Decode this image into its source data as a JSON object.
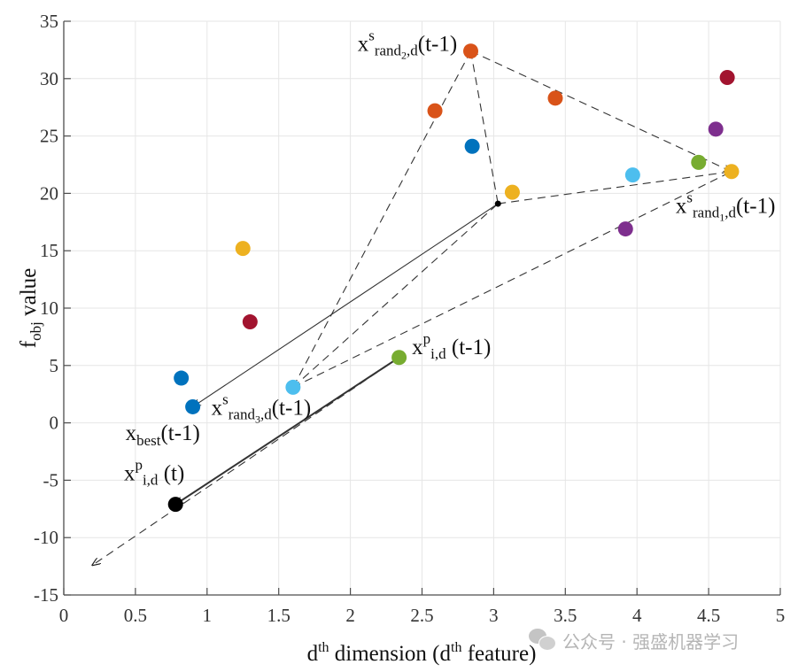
{
  "chart_data": {
    "type": "scatter",
    "title": "",
    "xlabel": {
      "base": "d",
      "sup": "th",
      "mid": " dimension (d",
      "sup2": "th",
      "tail": " feature)"
    },
    "ylabel": {
      "base": "f",
      "sub": "obj",
      "tail": " value"
    },
    "xlim": [
      0,
      5
    ],
    "ylim": [
      -15,
      35
    ],
    "xticks": [
      0,
      0.5,
      1,
      1.5,
      2,
      2.5,
      3,
      3.5,
      4,
      4.5,
      5
    ],
    "xtick_labels": [
      "0",
      "0.5",
      "1",
      "1.5",
      "2",
      "2.5",
      "3",
      "3.5",
      "4",
      "4.5",
      "5"
    ],
    "yticks": [
      -15,
      -10,
      -5,
      0,
      5,
      10,
      15,
      20,
      25,
      30,
      35
    ],
    "ytick_labels": [
      "-15",
      "-10",
      "-5",
      "0",
      "5",
      "10",
      "15",
      "20",
      "25",
      "30",
      "35"
    ],
    "grid": true,
    "colors": {
      "orange": "#d95319",
      "blue": "#0072bd",
      "yellow": "#edb120",
      "light_blue": "#4dbeee",
      "green": "#77ac30",
      "purple": "#7e2f8e",
      "crimson": "#a2142f",
      "black": "#000000",
      "grid": "#e6e6e6",
      "axis": "#4d4d4d",
      "line": "#333333"
    },
    "points": [
      {
        "x": 2.84,
        "y": 32.4,
        "color": "orange",
        "role": "x_rand2"
      },
      {
        "x": 2.59,
        "y": 27.2,
        "color": "orange"
      },
      {
        "x": 3.43,
        "y": 28.3,
        "color": "orange"
      },
      {
        "x": 2.85,
        "y": 24.1,
        "color": "blue"
      },
      {
        "x": 3.13,
        "y": 20.1,
        "color": "yellow"
      },
      {
        "x": 3.97,
        "y": 21.6,
        "color": "light_blue"
      },
      {
        "x": 4.43,
        "y": 22.7,
        "color": "green"
      },
      {
        "x": 4.66,
        "y": 21.9,
        "color": "yellow",
        "role": "x_rand1"
      },
      {
        "x": 4.63,
        "y": 30.1,
        "color": "crimson"
      },
      {
        "x": 4.55,
        "y": 25.6,
        "color": "purple"
      },
      {
        "x": 3.92,
        "y": 16.9,
        "color": "purple"
      },
      {
        "x": 1.25,
        "y": 15.2,
        "color": "yellow"
      },
      {
        "x": 1.3,
        "y": 8.8,
        "color": "crimson"
      },
      {
        "x": 0.82,
        "y": 3.9,
        "color": "blue"
      },
      {
        "x": 0.9,
        "y": 1.4,
        "color": "blue",
        "role": "x_best"
      },
      {
        "x": 1.6,
        "y": 3.1,
        "color": "light_blue",
        "role": "x_rand3"
      },
      {
        "x": 2.34,
        "y": 5.7,
        "color": "green",
        "role": "x_p_prev"
      },
      {
        "x": 0.78,
        "y": -7.1,
        "color": "black",
        "role": "x_p_new"
      }
    ],
    "center_point": {
      "x": 3.03,
      "y": 19.1
    },
    "segments": [
      {
        "from": [
          2.84,
          32.4
        ],
        "to": [
          4.66,
          21.9
        ],
        "style": "dashed",
        "arrow": true
      },
      {
        "from": [
          2.84,
          32.4
        ],
        "to": [
          1.6,
          3.1
        ],
        "style": "dashed"
      },
      {
        "from": [
          2.84,
          32.4
        ],
        "to": [
          3.03,
          19.1
        ],
        "style": "dashed"
      },
      {
        "from": [
          3.03,
          19.1
        ],
        "to": [
          4.66,
          21.9
        ],
        "style": "dashed"
      },
      {
        "from": [
          1.6,
          3.1
        ],
        "to": [
          4.66,
          21.9
        ],
        "style": "dashed"
      },
      {
        "from": [
          1.6,
          3.1
        ],
        "to": [
          3.03,
          19.1
        ],
        "style": "dashed"
      },
      {
        "from": [
          3.03,
          19.1
        ],
        "to": [
          0.9,
          1.4
        ],
        "style": "solid",
        "arrow": true
      },
      {
        "from": [
          2.34,
          5.7
        ],
        "to": [
          0.78,
          -7.1
        ],
        "style": "solid-bold",
        "arrow": true
      },
      {
        "from": [
          2.34,
          5.7
        ],
        "to": [
          0.2,
          -12.4
        ],
        "style": "dashed",
        "arrow": true
      }
    ],
    "annotations": [
      {
        "id": "rand2",
        "x": 2.05,
        "y": 32.4,
        "base": "x",
        "sup": "s",
        "sub": "rand",
        "subsub": "2",
        "subtail": ",d",
        "tail": "(t-1)"
      },
      {
        "id": "rand1",
        "x": 4.27,
        "y": 18.3,
        "base": "x",
        "sup": "s",
        "sub": "rand",
        "subsub": "1",
        "subtail": ",d",
        "tail": "(t-1)"
      },
      {
        "id": "rand3",
        "x": 1.03,
        "y": 0.7,
        "base": "x",
        "sup": "s",
        "sub": "rand",
        "subsub": "3",
        "subtail": ",d",
        "tail": "(t-1)"
      },
      {
        "id": "best",
        "x": 0.43,
        "y": -1.5,
        "base": "x",
        "sub": "best",
        "tail": "(t-1)"
      },
      {
        "id": "pprev",
        "x": 2.43,
        "y": 6.0,
        "base": "x",
        "sup": "p",
        "sub": "i,d",
        "tail": " (t-1)"
      },
      {
        "id": "pnew",
        "x": 0.42,
        "y": -5.0,
        "base": "x",
        "sup": "p",
        "sub": "i,d",
        "tail": " (t)"
      }
    ]
  },
  "watermark": {
    "text": "公众号 · 强盛机器学习",
    "icon": "wechat-icon"
  }
}
